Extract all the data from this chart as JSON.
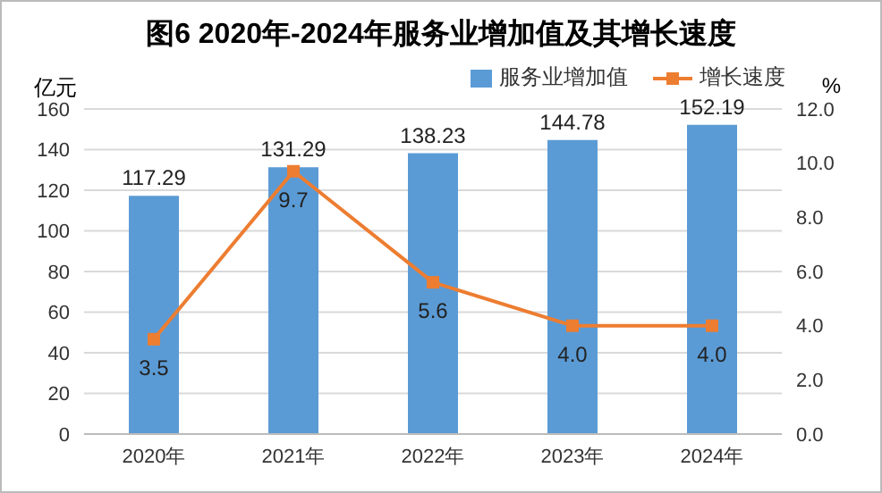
{
  "chart_data": {
    "type": "bar",
    "title": "图6 2020年-2024年服务业增加值及其增长速度",
    "ylabel": "亿元",
    "y2label": "%",
    "categories": [
      "2020年",
      "2021年",
      "2022年",
      "2023年",
      "2024年"
    ],
    "series": [
      {
        "name": "服务业增加值",
        "color": "#5b9bd5",
        "values": [
          117.29,
          131.29,
          138.23,
          144.78,
          152.19
        ],
        "value_labels": [
          "117.29",
          "131.29",
          "138.23",
          "144.78",
          "152.19"
        ]
      },
      {
        "name": "增长速度",
        "type": "line",
        "axis": "y2",
        "color": "#ed7d31",
        "marker": "square",
        "values": [
          3.5,
          9.7,
          5.6,
          4.0,
          4.0
        ],
        "value_labels": [
          "3.5",
          "9.7",
          "5.6",
          "4.0",
          "4.0"
        ]
      }
    ],
    "ylim": [
      0,
      160
    ],
    "yticks": [
      0,
      20,
      40,
      60,
      80,
      100,
      120,
      140,
      160
    ],
    "y2lim": [
      0,
      12
    ],
    "y2ticks": [
      {
        "value": 0,
        "label": "0.0"
      },
      {
        "value": 2,
        "label": "2.0"
      },
      {
        "value": 4,
        "label": "4.0"
      },
      {
        "value": 6,
        "label": "6.0"
      },
      {
        "value": 8,
        "label": "8.0"
      },
      {
        "value": 10,
        "label": "10.0"
      },
      {
        "value": 12,
        "label": "12.0"
      }
    ],
    "grid": "y",
    "legend": "top right"
  }
}
